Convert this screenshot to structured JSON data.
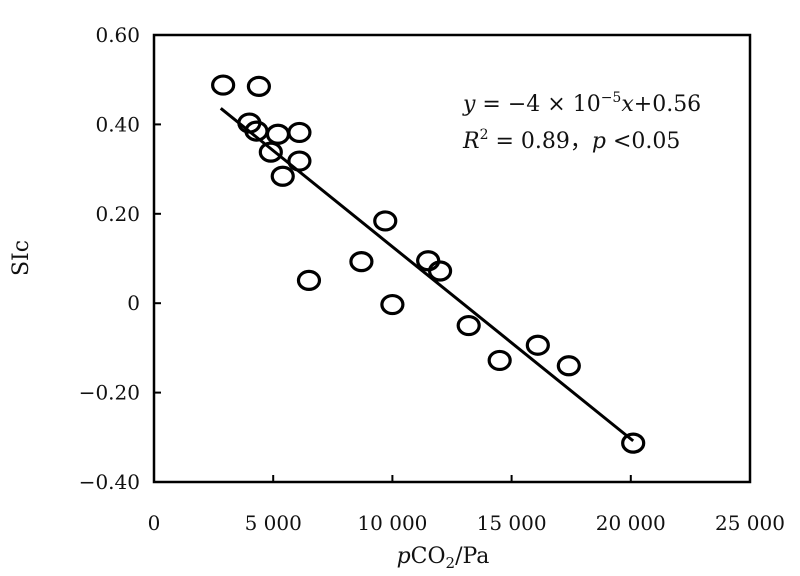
{
  "chart_data": {
    "type": "scatter",
    "xlabel": {
      "italic": "p",
      "main": "CO",
      "sub": "2",
      "unit": "/Pa"
    },
    "ylabel": "SIc",
    "xlim": [
      0,
      25000
    ],
    "ylim": [
      -0.4,
      0.6
    ],
    "x_ticks": [
      {
        "value": 0,
        "label": "0"
      },
      {
        "value": 5000,
        "label": "5 000"
      },
      {
        "value": 10000,
        "label": "10 000"
      },
      {
        "value": 15000,
        "label": "15 000"
      },
      {
        "value": 20000,
        "label": "20 000"
      },
      {
        "value": 25000,
        "label": "25 000"
      }
    ],
    "y_ticks": [
      {
        "value": 0.6,
        "label": "0.60"
      },
      {
        "value": 0.4,
        "label": "0.40"
      },
      {
        "value": 0.2,
        "label": "0.20"
      },
      {
        "value": 0,
        "label": "0"
      },
      {
        "value": -0.2,
        "label": "−0.20"
      },
      {
        "value": -0.4,
        "label": "−0.40"
      }
    ],
    "points": [
      {
        "x": 2900,
        "y": 0.488
      },
      {
        "x": 4400,
        "y": 0.485
      },
      {
        "x": 4000,
        "y": 0.403
      },
      {
        "x": 4300,
        "y": 0.385
      },
      {
        "x": 5200,
        "y": 0.378
      },
      {
        "x": 6100,
        "y": 0.382
      },
      {
        "x": 4900,
        "y": 0.338
      },
      {
        "x": 6100,
        "y": 0.318
      },
      {
        "x": 5400,
        "y": 0.284
      },
      {
        "x": 6500,
        "y": 0.051
      },
      {
        "x": 8700,
        "y": 0.093
      },
      {
        "x": 9700,
        "y": 0.184
      },
      {
        "x": 10000,
        "y": -0.003
      },
      {
        "x": 11500,
        "y": 0.095
      },
      {
        "x": 12000,
        "y": 0.072
      },
      {
        "x": 13200,
        "y": -0.05
      },
      {
        "x": 14500,
        "y": -0.128
      },
      {
        "x": 16100,
        "y": -0.094
      },
      {
        "x": 17400,
        "y": -0.14
      },
      {
        "x": 20100,
        "y": -0.313
      }
    ],
    "fit_line": {
      "x1": 2800,
      "y1": 0.436,
      "x2": 20100,
      "y2": -0.308
    },
    "annotation": {
      "equation": {
        "y": "y",
        "eq": " = −4 × 10",
        "exp": "−5",
        "x": "x",
        "rest": "+0.56"
      },
      "stats": {
        "r": "R",
        "r_exp": "2",
        "r_val": " = 0.89，",
        "p": "p",
        "p_val": " <0.05"
      }
    },
    "grid": false,
    "legend": "none"
  }
}
